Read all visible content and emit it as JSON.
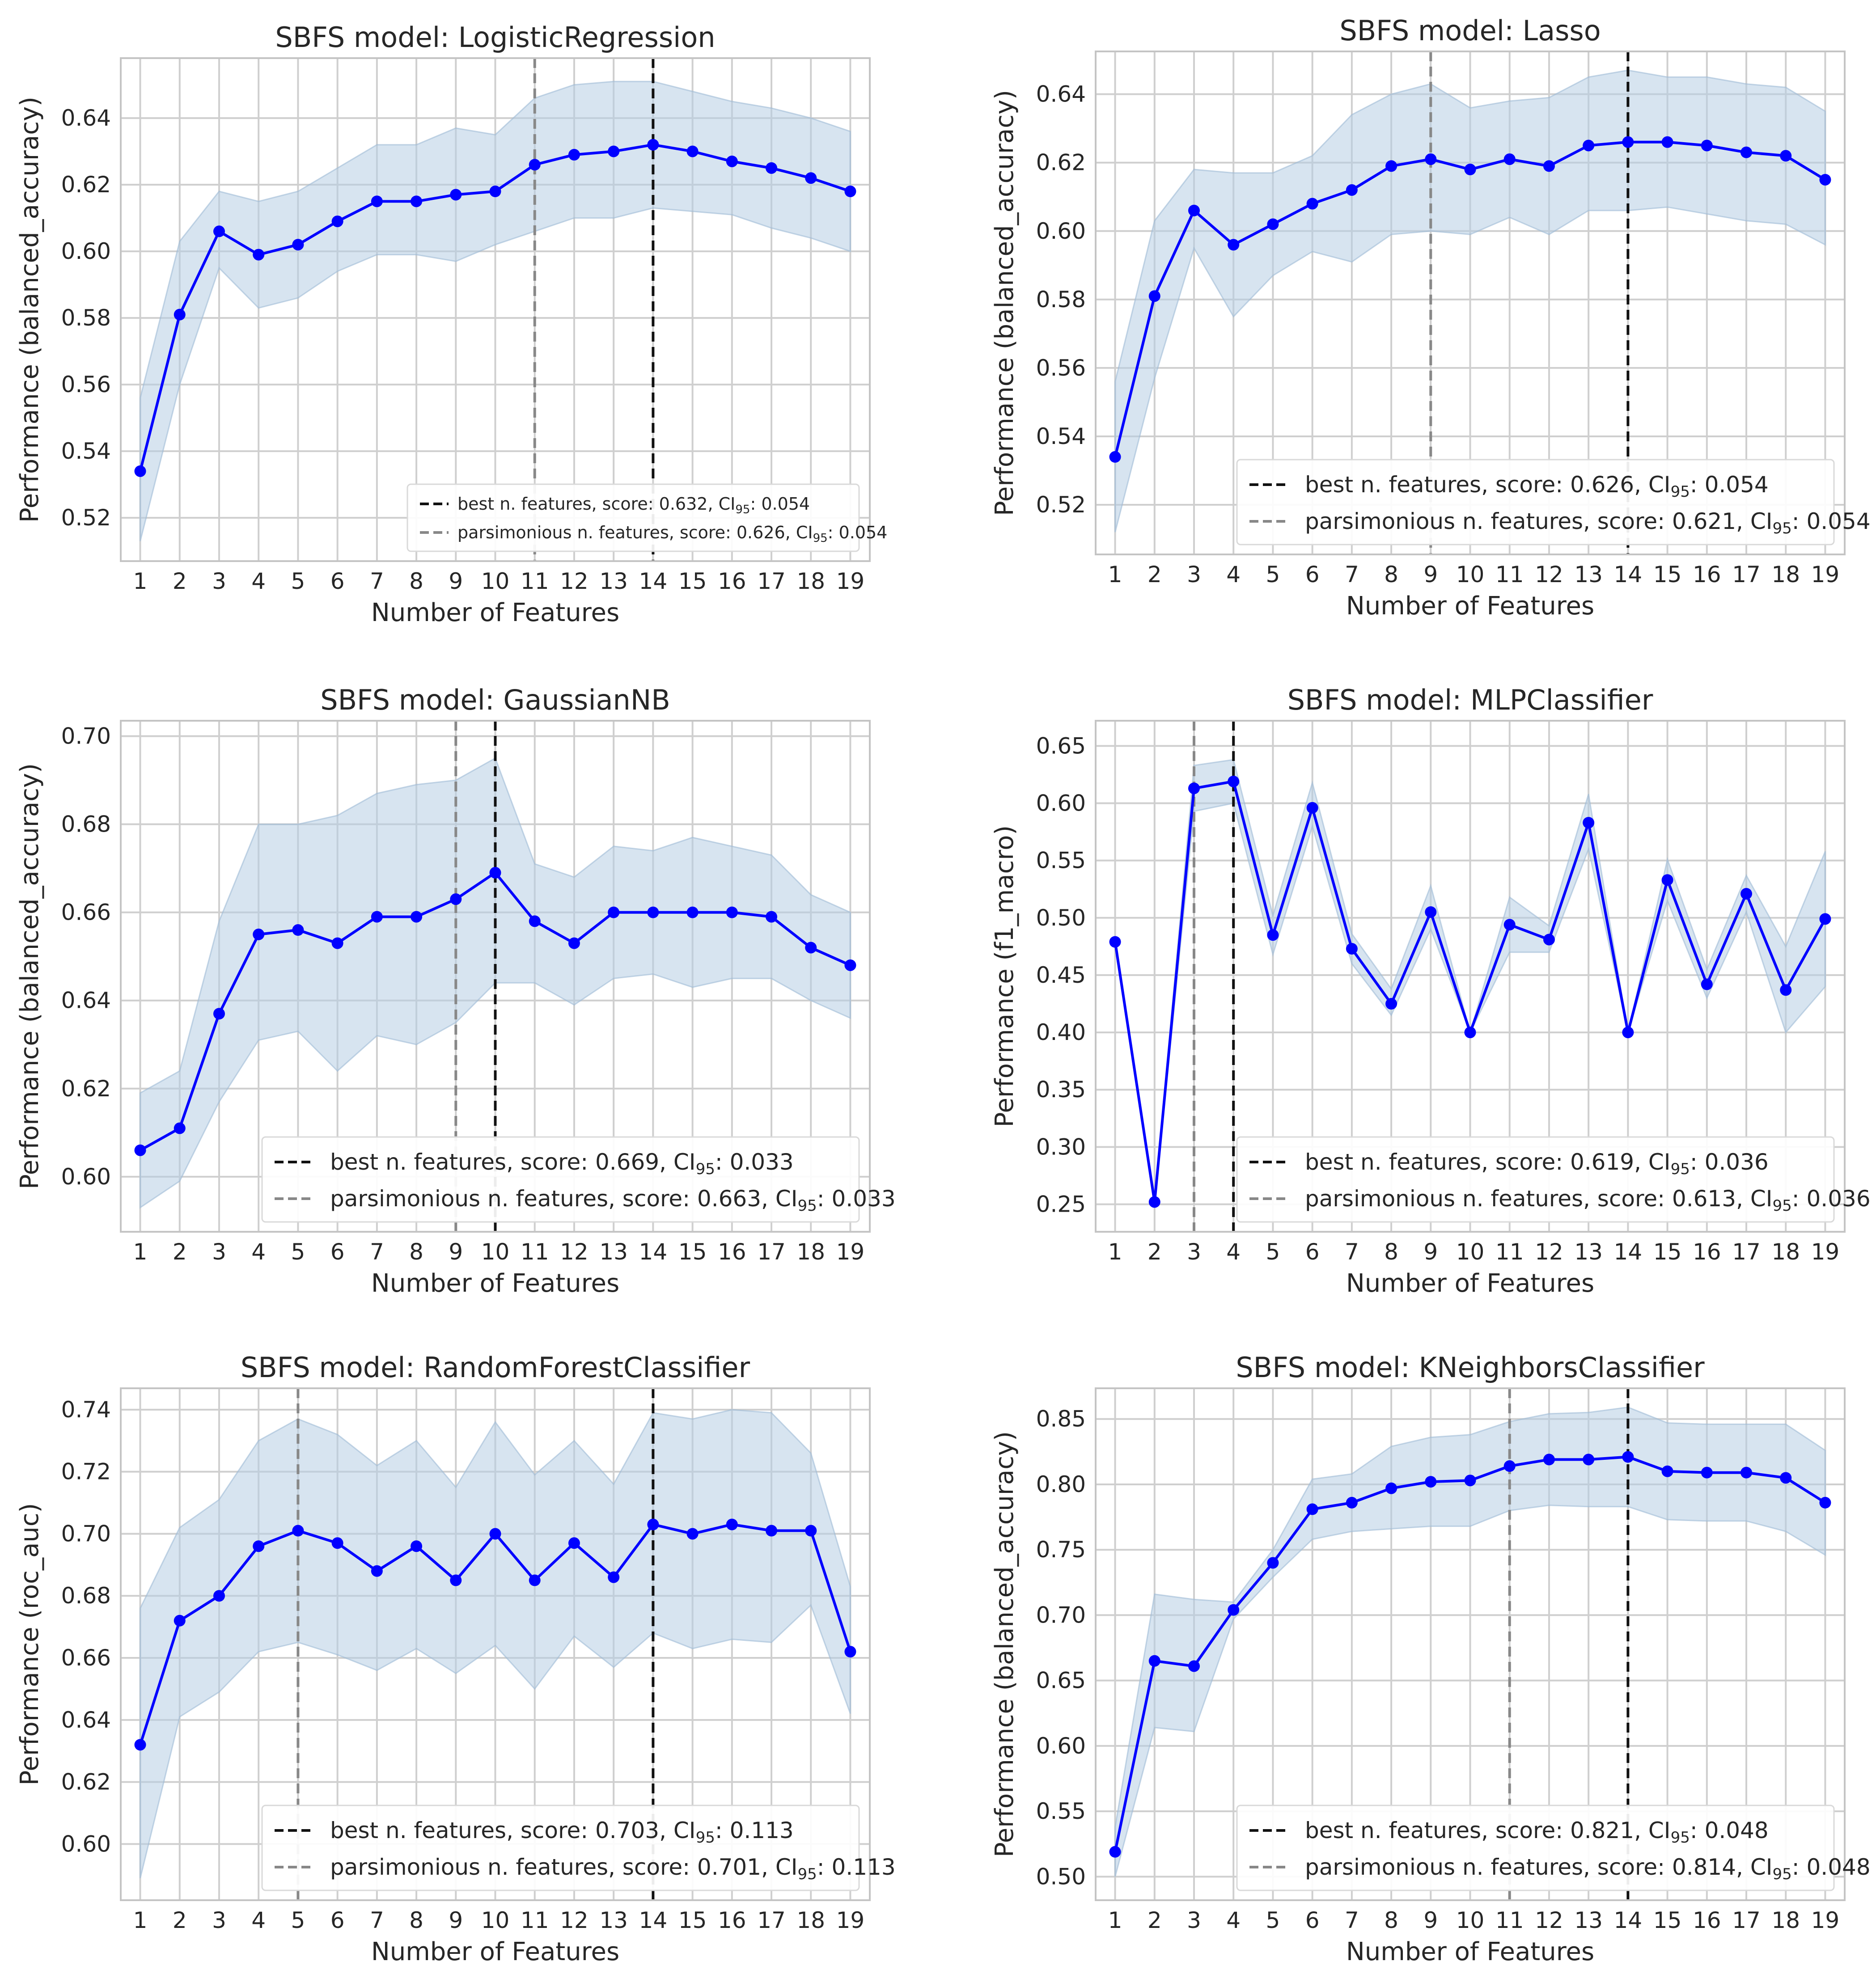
{
  "colors": {
    "series": "#0000ff",
    "band": "#b7cde3",
    "best_line": "#111111",
    "pars_line": "#888888",
    "grid": "#cfcfcf"
  },
  "chart_data": [
    {
      "type": "line",
      "title": "SBFS model: LogisticRegression",
      "xlabel": "Number of Features",
      "ylabel": "Performance (balanced_accuracy)",
      "x": [
        1,
        2,
        3,
        4,
        5,
        6,
        7,
        8,
        9,
        10,
        11,
        12,
        13,
        14,
        15,
        16,
        17,
        18,
        19
      ],
      "series": [
        {
          "name": "LogisticRegression",
          "values": [
            0.534,
            0.581,
            0.606,
            0.599,
            0.602,
            0.609,
            0.615,
            0.615,
            0.617,
            0.618,
            0.626,
            0.629,
            0.63,
            0.632,
            0.63,
            0.627,
            0.625,
            0.622,
            0.618
          ],
          "ci_low": [
            0.513,
            0.56,
            0.595,
            0.583,
            0.586,
            0.594,
            0.599,
            0.599,
            0.597,
            0.602,
            0.606,
            0.61,
            0.61,
            0.613,
            0.612,
            0.611,
            0.607,
            0.604,
            0.6
          ],
          "ci_high": [
            0.556,
            0.603,
            0.618,
            0.615,
            0.618,
            0.625,
            0.632,
            0.632,
            0.637,
            0.635,
            0.646,
            0.65,
            0.651,
            0.651,
            0.648,
            0.645,
            0.643,
            0.64,
            0.636
          ]
        }
      ],
      "ylim": [
        0.507,
        0.658
      ],
      "yticks": [
        0.52,
        0.54,
        0.56,
        0.58,
        0.6,
        0.62,
        0.64
      ],
      "ytick_labels": [
        "0.52",
        "0.54",
        "0.56",
        "0.58",
        "0.60",
        "0.62",
        "0.64"
      ],
      "best_x": 14,
      "pars_x": 11,
      "legend": {
        "position": "lower-right",
        "size": "small",
        "best": "best n. features, score: 0.632, CI",
        "best_ci": "95",
        "best_tail": ": 0.054",
        "pars": "parsimonious n. features, score: 0.626, CI",
        "pars_ci": "95",
        "pars_tail": ": 0.054"
      }
    },
    {
      "type": "line",
      "title": "SBFS model: Lasso",
      "xlabel": "Number of Features",
      "ylabel": "Performance (balanced_accuracy)",
      "x": [
        1,
        2,
        3,
        4,
        5,
        6,
        7,
        8,
        9,
        10,
        11,
        12,
        13,
        14,
        15,
        16,
        17,
        18,
        19
      ],
      "series": [
        {
          "name": "Lasso",
          "values": [
            0.534,
            0.581,
            0.606,
            0.596,
            0.602,
            0.608,
            0.612,
            0.619,
            0.621,
            0.618,
            0.621,
            0.619,
            0.625,
            0.626,
            0.626,
            0.625,
            0.623,
            0.622,
            0.615
          ],
          "ci_low": [
            0.512,
            0.557,
            0.595,
            0.575,
            0.587,
            0.594,
            0.591,
            0.599,
            0.6,
            0.599,
            0.604,
            0.599,
            0.606,
            0.606,
            0.607,
            0.605,
            0.603,
            0.602,
            0.596
          ],
          "ci_high": [
            0.556,
            0.603,
            0.618,
            0.617,
            0.617,
            0.622,
            0.634,
            0.64,
            0.643,
            0.636,
            0.638,
            0.639,
            0.645,
            0.647,
            0.645,
            0.645,
            0.643,
            0.642,
            0.635
          ]
        }
      ],
      "ylim": [
        0.5055,
        0.6525
      ],
      "yticks": [
        0.52,
        0.54,
        0.56,
        0.58,
        0.6,
        0.62,
        0.64
      ],
      "ytick_labels": [
        "0.52",
        "0.54",
        "0.56",
        "0.58",
        "0.60",
        "0.62",
        "0.64"
      ],
      "best_x": 14,
      "pars_x": 9,
      "legend": {
        "position": "lower-right",
        "size": "normal",
        "best": "best n. features, score: 0.626, CI",
        "best_ci": "95",
        "best_tail": ": 0.054",
        "pars": "parsimonious n. features, score: 0.621, CI",
        "pars_ci": "95",
        "pars_tail": ": 0.054"
      }
    },
    {
      "type": "line",
      "title": "SBFS model: GaussianNB",
      "xlabel": "Number of Features",
      "ylabel": "Performance (balanced_accuracy)",
      "x": [
        1,
        2,
        3,
        4,
        5,
        6,
        7,
        8,
        9,
        10,
        11,
        12,
        13,
        14,
        15,
        16,
        17,
        18,
        19
      ],
      "series": [
        {
          "name": "GaussianNB",
          "values": [
            0.606,
            0.611,
            0.637,
            0.655,
            0.656,
            0.653,
            0.659,
            0.659,
            0.663,
            0.669,
            0.658,
            0.653,
            0.66,
            0.66,
            0.66,
            0.66,
            0.659,
            0.652,
            0.648
          ],
          "ci_low": [
            0.593,
            0.599,
            0.617,
            0.631,
            0.633,
            0.624,
            0.632,
            0.63,
            0.635,
            0.644,
            0.644,
            0.639,
            0.645,
            0.646,
            0.643,
            0.645,
            0.645,
            0.64,
            0.636
          ],
          "ci_high": [
            0.619,
            0.624,
            0.658,
            0.68,
            0.68,
            0.682,
            0.687,
            0.689,
            0.69,
            0.695,
            0.671,
            0.668,
            0.675,
            0.674,
            0.677,
            0.675,
            0.673,
            0.664,
            0.66
          ]
        }
      ],
      "ylim": [
        0.5875,
        0.7035
      ],
      "yticks": [
        0.6,
        0.62,
        0.64,
        0.66,
        0.68,
        0.7
      ],
      "ytick_labels": [
        "0.60",
        "0.62",
        "0.64",
        "0.66",
        "0.68",
        "0.70"
      ],
      "best_x": 10,
      "pars_x": 9,
      "legend": {
        "position": "lower-right",
        "size": "normal",
        "best": "best n. features, score: 0.669, CI",
        "best_ci": "95",
        "best_tail": ": 0.033",
        "pars": "parsimonious n. features, score: 0.663, CI",
        "pars_ci": "95",
        "pars_tail": ": 0.033"
      }
    },
    {
      "type": "line",
      "title": "SBFS model: MLPClassifier",
      "xlabel": "Number of Features",
      "ylabel": "Performance (f1_macro)",
      "x": [
        1,
        2,
        3,
        4,
        5,
        6,
        7,
        8,
        9,
        10,
        11,
        12,
        13,
        14,
        15,
        16,
        17,
        18,
        19
      ],
      "series": [
        {
          "name": "MLPClassifier",
          "values": [
            0.479,
            0.252,
            0.613,
            0.619,
            0.485,
            0.596,
            0.473,
            0.425,
            0.505,
            0.4,
            0.494,
            0.481,
            0.583,
            0.4,
            0.533,
            0.442,
            0.521,
            0.437,
            0.499
          ],
          "ci_low": [
            0.479,
            0.252,
            0.593,
            0.6,
            0.468,
            0.58,
            0.46,
            0.415,
            0.49,
            0.4,
            0.47,
            0.47,
            0.56,
            0.4,
            0.515,
            0.43,
            0.505,
            0.4,
            0.44
          ],
          "ci_high": [
            0.479,
            0.252,
            0.633,
            0.638,
            0.502,
            0.618,
            0.486,
            0.438,
            0.528,
            0.4,
            0.518,
            0.493,
            0.608,
            0.4,
            0.551,
            0.455,
            0.537,
            0.475,
            0.558
          ]
        }
      ],
      "ylim": [
        0.226,
        0.672
      ],
      "yticks": [
        0.25,
        0.3,
        0.35,
        0.4,
        0.45,
        0.5,
        0.55,
        0.6,
        0.65
      ],
      "ytick_labels": [
        "0.25",
        "0.30",
        "0.35",
        "0.40",
        "0.45",
        "0.50",
        "0.55",
        "0.60",
        "0.65"
      ],
      "best_x": 4,
      "pars_x": 3,
      "legend": {
        "position": "lower-right",
        "size": "normal",
        "best": "best n. features, score: 0.619, CI",
        "best_ci": "95",
        "best_tail": ": 0.036",
        "pars": "parsimonious n. features, score: 0.613, CI",
        "pars_ci": "95",
        "pars_tail": ": 0.036"
      }
    },
    {
      "type": "line",
      "title": "SBFS model: RandomForestClassifier",
      "xlabel": "Number of Features",
      "ylabel": "Performance (roc_auc)",
      "x": [
        1,
        2,
        3,
        4,
        5,
        6,
        7,
        8,
        9,
        10,
        11,
        12,
        13,
        14,
        15,
        16,
        17,
        18,
        19
      ],
      "series": [
        {
          "name": "RandomForestClassifier",
          "values": [
            0.632,
            0.672,
            0.68,
            0.696,
            0.701,
            0.697,
            0.688,
            0.696,
            0.685,
            0.7,
            0.685,
            0.697,
            0.686,
            0.703,
            0.7,
            0.703,
            0.701,
            0.701,
            0.662
          ],
          "ci_low": [
            0.589,
            0.641,
            0.649,
            0.662,
            0.665,
            0.661,
            0.656,
            0.663,
            0.655,
            0.664,
            0.65,
            0.667,
            0.657,
            0.668,
            0.663,
            0.666,
            0.665,
            0.677,
            0.642
          ],
          "ci_high": [
            0.676,
            0.702,
            0.711,
            0.73,
            0.737,
            0.732,
            0.722,
            0.73,
            0.715,
            0.736,
            0.719,
            0.73,
            0.716,
            0.739,
            0.737,
            0.74,
            0.739,
            0.726,
            0.683
          ]
        }
      ],
      "ylim": [
        0.5819,
        0.7469
      ],
      "yticks": [
        0.6,
        0.62,
        0.64,
        0.66,
        0.68,
        0.7,
        0.72,
        0.74
      ],
      "ytick_labels": [
        "0.60",
        "0.62",
        "0.64",
        "0.66",
        "0.68",
        "0.70",
        "0.72",
        "0.74"
      ],
      "best_x": 14,
      "pars_x": 5,
      "legend": {
        "position": "lower-right",
        "size": "normal",
        "best": "best n. features, score: 0.703, CI",
        "best_ci": "95",
        "best_tail": ": 0.113",
        "pars": "parsimonious n. features, score: 0.701, CI",
        "pars_ci": "95",
        "pars_tail": ": 0.113"
      }
    },
    {
      "type": "line",
      "title": "SBFS model: KNeighborsClassifier",
      "xlabel": "Number of Features",
      "ylabel": "Performance (balanced_accuracy)",
      "x": [
        1,
        2,
        3,
        4,
        5,
        6,
        7,
        8,
        9,
        10,
        11,
        12,
        13,
        14,
        15,
        16,
        17,
        18,
        19
      ],
      "series": [
        {
          "name": "KNeighborsClassifier",
          "values": [
            0.519,
            0.665,
            0.661,
            0.704,
            0.74,
            0.781,
            0.786,
            0.797,
            0.802,
            0.803,
            0.814,
            0.819,
            0.819,
            0.821,
            0.81,
            0.809,
            0.809,
            0.805,
            0.786
          ],
          "ci_low": [
            0.5,
            0.614,
            0.611,
            0.697,
            0.729,
            0.758,
            0.764,
            0.766,
            0.768,
            0.768,
            0.78,
            0.784,
            0.783,
            0.783,
            0.773,
            0.772,
            0.772,
            0.764,
            0.746
          ],
          "ci_high": [
            0.538,
            0.716,
            0.712,
            0.71,
            0.75,
            0.804,
            0.808,
            0.829,
            0.836,
            0.838,
            0.848,
            0.854,
            0.855,
            0.859,
            0.847,
            0.846,
            0.846,
            0.846,
            0.826
          ]
        }
      ],
      "ylim": [
        0.482,
        0.8735
      ],
      "yticks": [
        0.5,
        0.55,
        0.6,
        0.65,
        0.7,
        0.75,
        0.8,
        0.85
      ],
      "ytick_labels": [
        "0.50",
        "0.55",
        "0.60",
        "0.65",
        "0.70",
        "0.75",
        "0.80",
        "0.85"
      ],
      "best_x": 14,
      "pars_x": 11,
      "legend": {
        "position": "lower-right",
        "size": "normal",
        "best": "best n. features, score: 0.821, CI",
        "best_ci": "95",
        "best_tail": ": 0.048",
        "pars": "parsimonious n. features, score: 0.814, CI",
        "pars_ci": "95",
        "pars_tail": ": 0.048"
      }
    }
  ]
}
